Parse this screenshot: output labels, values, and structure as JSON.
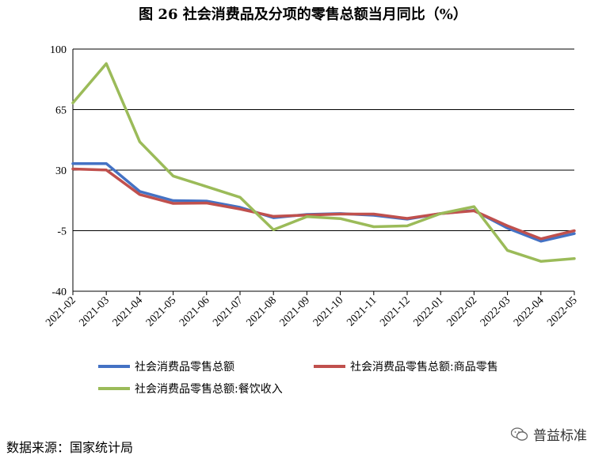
{
  "chart_data": {
    "type": "line",
    "title": "图 26  社会消费品及分项的零售总额当月同比（%）",
    "categories": [
      "2021-02",
      "2021-03",
      "2021-04",
      "2021-05",
      "2021-06",
      "2021-07",
      "2021-08",
      "2021-09",
      "2021-10",
      "2021-11",
      "2021-12",
      "2022-01",
      "2022-02",
      "2022-03",
      "2022-04",
      "2022-05"
    ],
    "ylim": [
      -40,
      100
    ],
    "yticks": [
      100,
      65,
      30,
      -5,
      -40
    ],
    "grid": true,
    "legend_position": "bottom",
    "series": [
      {
        "name": "社会消费品零售总额",
        "color": "#4472C4",
        "values": [
          33.8,
          33.8,
          17.7,
          12.4,
          12.1,
          8.5,
          2.5,
          4.4,
          4.9,
          3.9,
          1.7,
          4.9,
          6.7,
          -3.5,
          -11.1,
          -6.7
        ]
      },
      {
        "name": "社会消费品零售总额:商品零售",
        "color": "#C0504D",
        "values": [
          30.7,
          30.1,
          15.9,
          10.8,
          11.0,
          7.5,
          3.3,
          4.0,
          4.6,
          4.6,
          2.1,
          4.9,
          6.5,
          -2.2,
          -9.7,
          -5.0
        ]
      },
      {
        "name": "社会消费品零售总额:餐饮收入",
        "color": "#9BBB59",
        "values": [
          68.9,
          91.6,
          46.4,
          26.6,
          20.5,
          14.3,
          -4.5,
          3.1,
          2.0,
          -2.7,
          -2.2,
          4.9,
          8.9,
          -16.4,
          -22.7,
          -21.1
        ]
      }
    ]
  },
  "source": "数据来源：国家统计局",
  "watermark": "普益标准"
}
